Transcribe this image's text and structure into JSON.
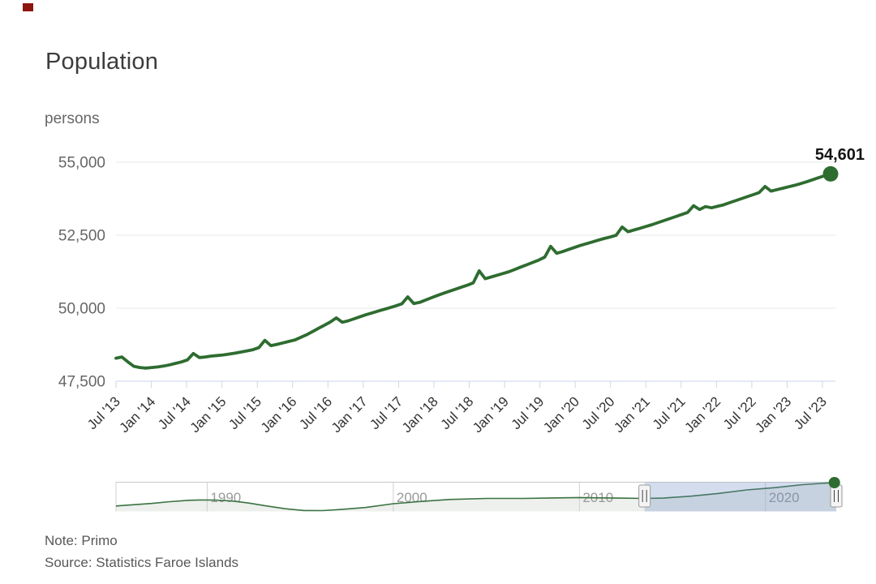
{
  "header": {
    "title": "Population",
    "unit_label": "persons"
  },
  "footer": {
    "note": "Note: Primo",
    "source": "Source: Statistics Faroe Islands"
  },
  "colors": {
    "series": "#2e6c30",
    "grid": "#e7e7e7",
    "axis": "#ccd6eb",
    "y_label": "#666666",
    "x_label": "#333333",
    "data_label": "#141414",
    "title": "#3c3c3c",
    "footer": "#58585a",
    "corner_mark": "#8e1410",
    "nav_border": "#c8c8c8",
    "nav_grid": "#d0d0d0",
    "nav_label": "#9a9a9a",
    "nav_area": "#edf0ec",
    "nav_line": "#3b7241",
    "mask": "rgba(102,133,194,0.28)",
    "handle_fill": "#f4f4f4",
    "handle_stroke": "#999999",
    "handle_lines": "#3f3f3f"
  },
  "chart_data": {
    "type": "line",
    "title": "Population",
    "ylabel": "persons",
    "series_name": "Population",
    "last_value": 54601,
    "last_value_label": "54,601",
    "ylim": [
      47500,
      55000
    ],
    "y_ticks": [
      55000,
      52500,
      50000,
      47500
    ],
    "y_tick_labels": [
      "55,000",
      "52,500",
      "50,000",
      "47,500"
    ],
    "x_start": "Jul 2013",
    "x_end": "Jul 2023",
    "x_tick_labels": [
      "Jul '13",
      "Jan '14",
      "Jul '14",
      "Jan '15",
      "Jul '15",
      "Jan '16",
      "Jul '16",
      "Jan '17",
      "Jul '17",
      "Jan '18",
      "Jul '18",
      "Jan '19",
      "Jul '19",
      "Jan '20",
      "Jul '20",
      "Jan '21",
      "Jul '21",
      "Jan '22",
      "Jul '22",
      "Jan '23",
      "Jul '23"
    ],
    "monthly_values": [
      48290,
      48330,
      48160,
      48010,
      47970,
      47950,
      47970,
      47990,
      48020,
      48060,
      48110,
      48160,
      48230,
      48450,
      48310,
      48330,
      48360,
      48380,
      48400,
      48430,
      48460,
      48500,
      48540,
      48580,
      48650,
      48900,
      48720,
      48760,
      48810,
      48860,
      48910,
      49000,
      49090,
      49200,
      49310,
      49420,
      49530,
      49670,
      49520,
      49570,
      49640,
      49710,
      49780,
      49840,
      49900,
      49960,
      50020,
      50080,
      50150,
      50390,
      50160,
      50200,
      50280,
      50360,
      50440,
      50510,
      50580,
      50650,
      50720,
      50790,
      50870,
      51280,
      51010,
      51070,
      51130,
      51190,
      51250,
      51330,
      51410,
      51490,
      51570,
      51650,
      51750,
      52120,
      51880,
      51940,
      52010,
      52080,
      52150,
      52210,
      52270,
      52330,
      52390,
      52440,
      52500,
      52780,
      52620,
      52680,
      52740,
      52800,
      52860,
      52930,
      53000,
      53070,
      53140,
      53210,
      53280,
      53510,
      53380,
      53480,
      53440,
      53490,
      53540,
      53610,
      53680,
      53750,
      53820,
      53890,
      53960,
      54170,
      54010,
      54060,
      54110,
      54160,
      54210,
      54270,
      54330,
      54400,
      54470,
      54540,
      54601
    ],
    "navigator": {
      "decade_years": [
        1990,
        2000,
        2010,
        2020
      ],
      "decade_labels": [
        "1990",
        "2000",
        "2010",
        "2020"
      ],
      "year_range": [
        1985.1,
        2023.8
      ],
      "selected_range": [
        2013.5,
        2023.8
      ],
      "anchors": [
        [
          1985.1,
          45300
        ],
        [
          1986,
          45800
        ],
        [
          1987,
          46300
        ],
        [
          1988,
          47000
        ],
        [
          1989,
          47550
        ],
        [
          1989.6,
          47700
        ],
        [
          1990.4,
          47650
        ],
        [
          1991.3,
          47300
        ],
        [
          1992.2,
          46500
        ],
        [
          1993.2,
          45300
        ],
        [
          1994.2,
          44200
        ],
        [
          1995.2,
          43500
        ],
        [
          1996.2,
          43450
        ],
        [
          1997.2,
          43900
        ],
        [
          1998.5,
          44700
        ],
        [
          2000,
          46200
        ],
        [
          2001.5,
          47100
        ],
        [
          2003,
          47900
        ],
        [
          2005,
          48300
        ],
        [
          2007,
          48300
        ],
        [
          2008.5,
          48500
        ],
        [
          2010,
          48650
        ],
        [
          2011.5,
          48500
        ],
        [
          2013.5,
          48300
        ],
        [
          2014.5,
          48450
        ],
        [
          2016,
          49200
        ],
        [
          2017.5,
          50300
        ],
        [
          2019,
          51700
        ],
        [
          2020.5,
          52600
        ],
        [
          2022,
          53800
        ],
        [
          2023.7,
          54601
        ]
      ]
    }
  }
}
